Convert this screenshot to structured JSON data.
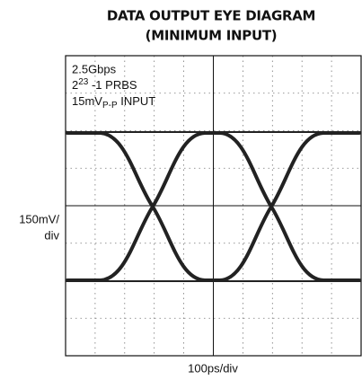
{
  "title": [
    "DATA OUTPUT EYE DIAGRAM",
    "(MINIMUM INPUT)"
  ],
  "annotations": {
    "rate": "2.5Gbps",
    "prbs": {
      "base": "2",
      "exp": "23",
      "rest": " -1 PRBS"
    },
    "input": {
      "value": "15mV",
      "sub": "P-P",
      "rest": " INPUT"
    }
  },
  "y_label": [
    "150mV/",
    "div"
  ],
  "x_label": "100ps/div"
}
